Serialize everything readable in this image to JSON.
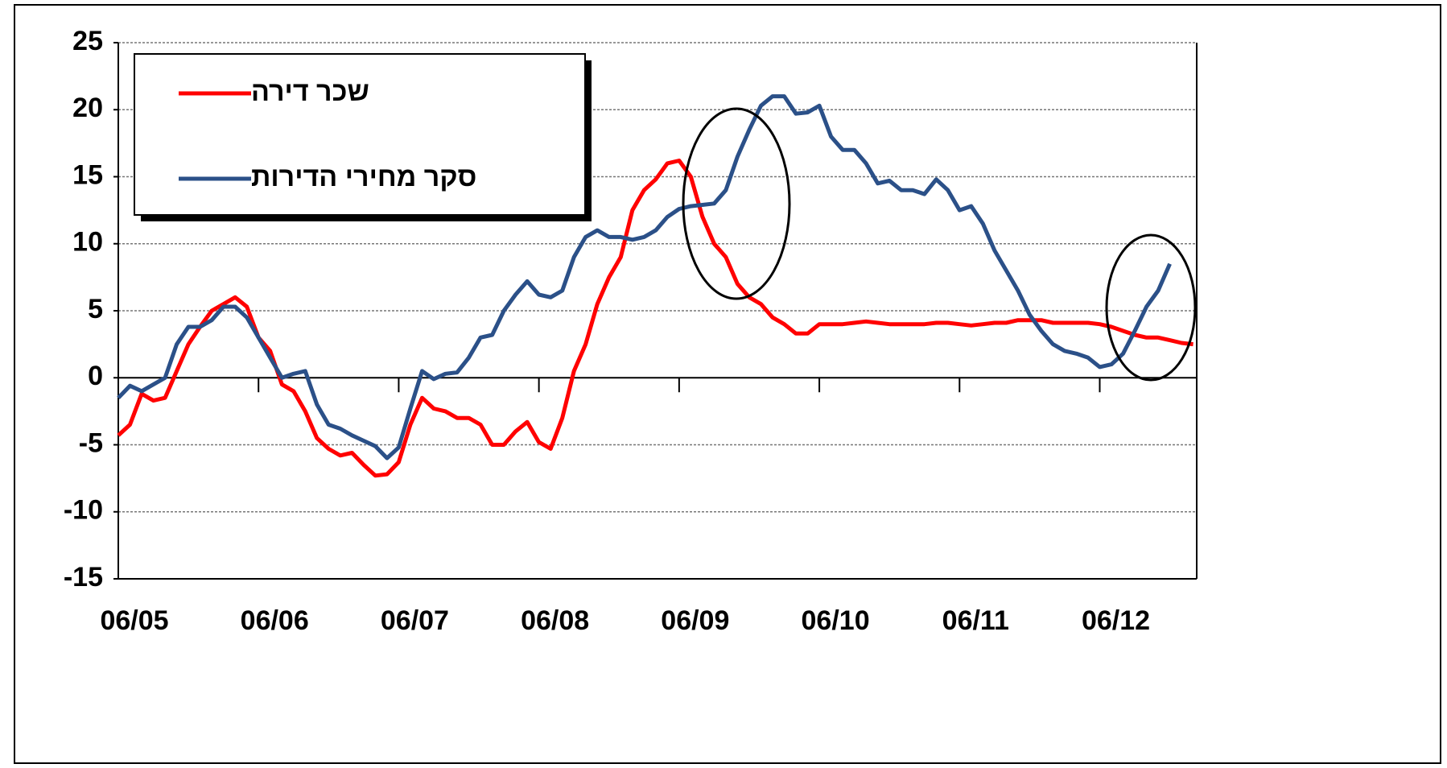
{
  "chart_data": {
    "type": "line",
    "categories": [
      "06/05",
      null,
      null,
      null,
      null,
      null,
      null,
      null,
      null,
      null,
      null,
      null,
      "06/06",
      null,
      null,
      null,
      null,
      null,
      null,
      null,
      null,
      null,
      null,
      null,
      "06/07",
      null,
      null,
      null,
      null,
      null,
      null,
      null,
      null,
      null,
      null,
      null,
      "06/08",
      null,
      null,
      null,
      null,
      null,
      null,
      null,
      null,
      null,
      null,
      null,
      "06/09",
      null,
      null,
      null,
      null,
      null,
      null,
      null,
      null,
      null,
      null,
      null,
      "06/10",
      null,
      null,
      null,
      null,
      null,
      null,
      null,
      null,
      null,
      null,
      null,
      "06/11",
      null,
      null,
      null,
      null,
      null,
      null,
      null,
      null,
      null,
      null,
      null,
      "06/12",
      null,
      null,
      null,
      null,
      null,
      null,
      null,
      null
    ],
    "series": [
      {
        "name": "שכר דירה",
        "color": "#ff0000",
        "values": [
          -4.3,
          -3.5,
          -1.2,
          -1.7,
          -1.5,
          0.5,
          2.5,
          3.8,
          5,
          5.5,
          6,
          5.3,
          3,
          2,
          -0.5,
          -1,
          -2.5,
          -4.5,
          -5.3,
          -5.8,
          -5.6,
          -6.5,
          -7.3,
          -7.2,
          -6.3,
          -3.5,
          -1.5,
          -2.3,
          -2.5,
          -3,
          -3,
          -3.5,
          -5,
          -5,
          -4,
          -3.3,
          -4.8,
          -5.3,
          -3,
          0.5,
          2.5,
          5.5,
          7.5,
          9,
          12.5,
          14,
          14.8,
          16,
          16.2,
          15,
          12,
          10,
          9,
          7,
          6,
          5.5,
          4.5,
          4,
          3.3,
          3.3,
          4,
          4,
          4,
          4.1,
          4.2,
          4.1,
          4,
          4,
          4,
          4,
          4.1,
          4.1,
          4,
          3.9,
          4,
          4.1,
          4.1,
          4.3,
          4.3,
          4.3,
          4.1,
          4.1,
          4.1,
          4.1,
          4,
          3.8,
          3.5,
          3.2,
          3,
          3,
          2.8,
          2.6,
          2.5
        ]
      },
      {
        "name": "סקר מחירי הדירות",
        "color": "#2b5088",
        "values": [
          -1.5,
          -0.6,
          -1,
          -0.5,
          0,
          2.5,
          3.8,
          3.8,
          4.3,
          5.3,
          5.3,
          4.5,
          3,
          1.5,
          0,
          0.3,
          0.5,
          -2,
          -3.5,
          -3.8,
          -4.3,
          -4.7,
          -5.1,
          -6,
          -5.2,
          -2.3,
          0.5,
          -0.1,
          0.3,
          0.4,
          1.5,
          3,
          3.2,
          5,
          6.2,
          7.2,
          6.2,
          6,
          6.5,
          9,
          10.5,
          11,
          10.5,
          10.5,
          10.3,
          10.5,
          11,
          12,
          12.6,
          12.8,
          12.9,
          13,
          14,
          16.5,
          18.5,
          20.3,
          21,
          21,
          19.7,
          19.8,
          20.3,
          18,
          17,
          17,
          16,
          14.5,
          14.7,
          14,
          14,
          13.7,
          14.8,
          14,
          12.5,
          12.8,
          11.5,
          9.5,
          8,
          6.5,
          4.7,
          3.5,
          2.5,
          2,
          1.8,
          1.5,
          0.8,
          1,
          1.8,
          3.5,
          5.3,
          6.5,
          8.5,
          null,
          null
        ]
      }
    ],
    "ylim": [
      -15,
      25
    ],
    "yticks": [
      -15,
      -10,
      -5,
      0,
      5,
      10,
      15,
      20,
      25
    ],
    "grid": true
  }
}
